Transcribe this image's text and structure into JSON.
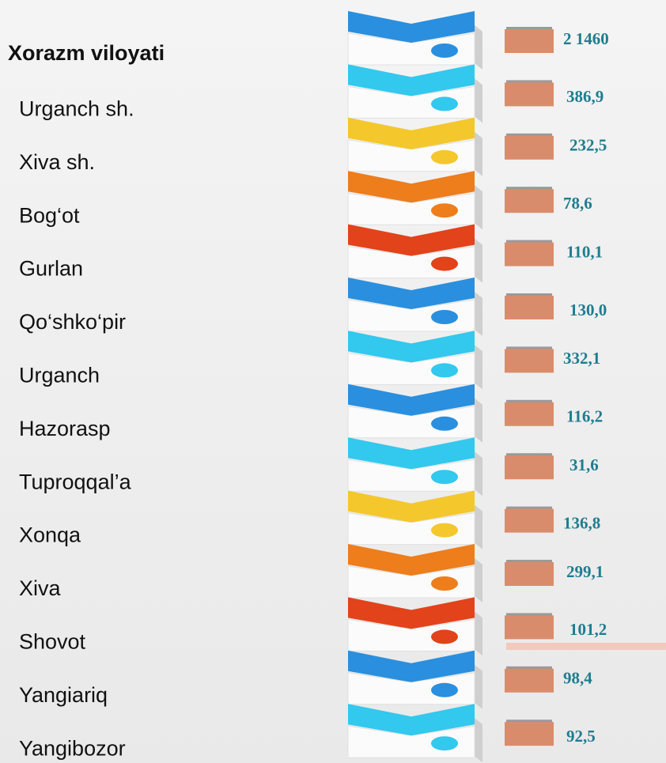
{
  "region": {
    "name": "Xorazm viloyati",
    "value": "2 1460"
  },
  "districts": [
    {
      "name": "Urganch sh.",
      "value": "386,9"
    },
    {
      "name": "Xiva sh.",
      "value": "232,5"
    },
    {
      "name": "Bog‘ot",
      "value": "78,6"
    },
    {
      "name": "Gurlan",
      "value": "110,1"
    },
    {
      "name": "Qo‘shko‘pir",
      "value": "130,0"
    },
    {
      "name": "Urganch",
      "value": "332,1"
    },
    {
      "name": "Hazorasp",
      "value": "116,2"
    },
    {
      "name": "Tuproqqal’a",
      "value": "31,6"
    },
    {
      "name": "Xonqa",
      "value": "136,8"
    },
    {
      "name": "Xiva",
      "value": "299,1"
    },
    {
      "name": "Shovot",
      "value": "101,2"
    },
    {
      "name": "Yangiariq",
      "value": "98,4"
    },
    {
      "name": "Yangibozor",
      "value": "92,5"
    }
  ]
}
